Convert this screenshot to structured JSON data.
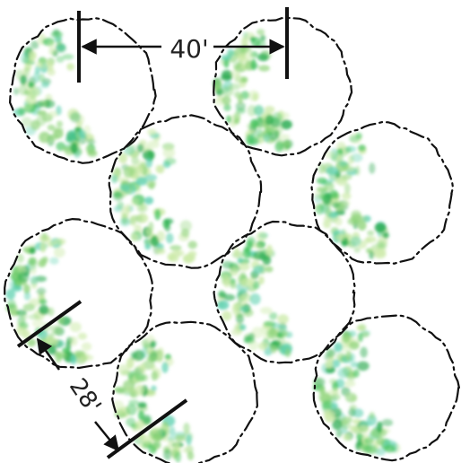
{
  "diagram": {
    "dimension_top": "40'",
    "dimension_diagonal": "28'",
    "colors": {
      "outline": "#111111",
      "foliage_light": "#c9e9a4",
      "foliage_mid": "#8fd47a",
      "foliage_green": "#3fc25a",
      "foliage_teal": "#5dd0b0",
      "foliage_dark": "#22a84a"
    }
  }
}
